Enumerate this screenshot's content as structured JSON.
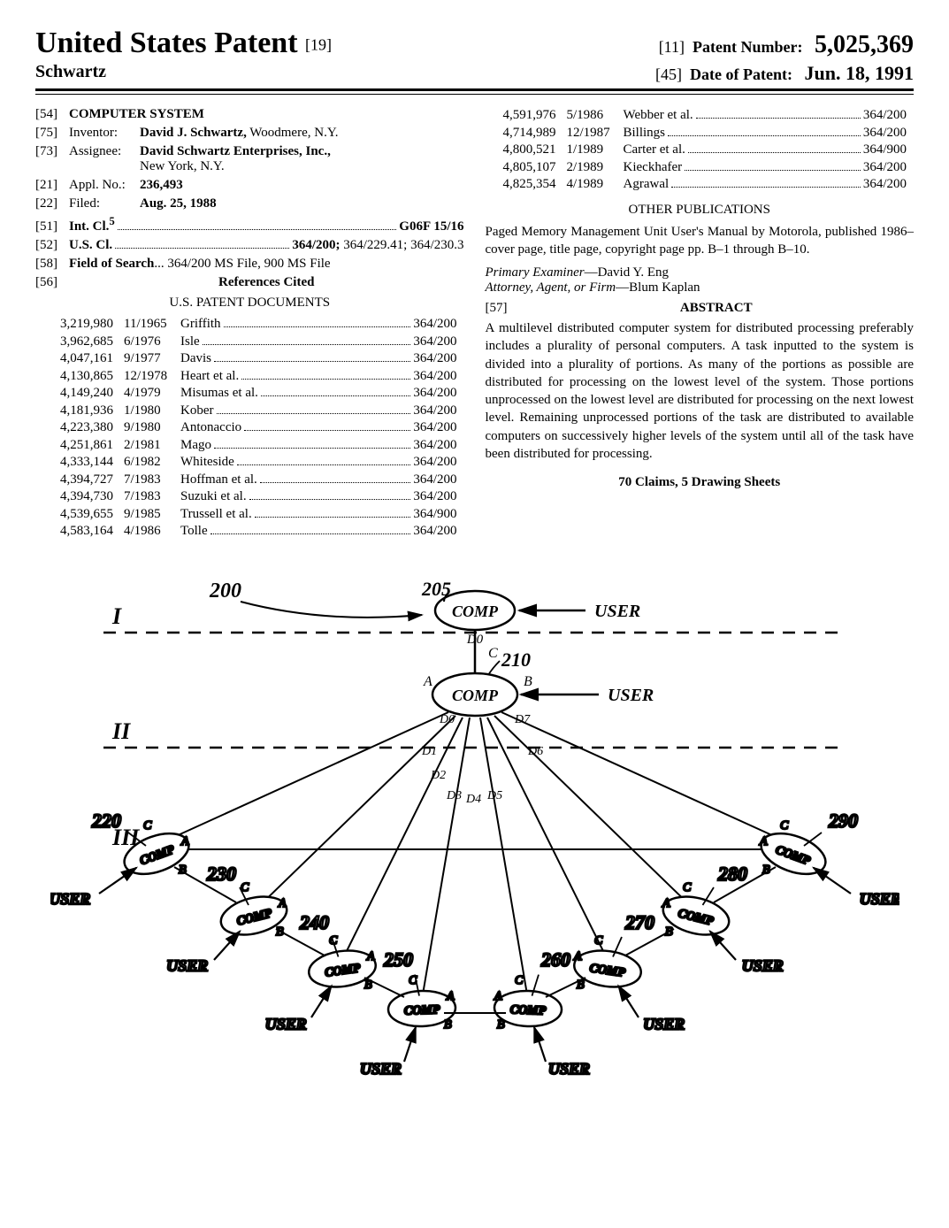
{
  "header": {
    "country_title": "United States Patent",
    "left_code": "[19]",
    "inventor_surname": "Schwartz",
    "patent_number_label": "Patent Number:",
    "patent_number_code": "[11]",
    "patent_number": "5,025,369",
    "date_label": "Date of Patent:",
    "date_code": "[45]",
    "date_of_patent": "Jun. 18, 1991"
  },
  "biblio": {
    "title_code": "[54]",
    "title": "COMPUTER SYSTEM",
    "inventor_code": "[75]",
    "inventor_label": "Inventor:",
    "inventor": "David J. Schwartz,",
    "inventor_loc": " Woodmere, N.Y.",
    "assignee_code": "[73]",
    "assignee_label": "Assignee:",
    "assignee": "David Schwartz Enterprises, Inc.,",
    "assignee_loc": "New York, N.Y.",
    "appl_code": "[21]",
    "appl_label": "Appl. No.:",
    "appl_no": "236,493",
    "filed_code": "[22]",
    "filed_label": "Filed:",
    "filed": "Aug. 25, 1988",
    "intcl_code": "[51]",
    "intcl_label": "Int. Cl.",
    "intcl_sup": "5",
    "intcl_val": "G06F 15/16",
    "uscl_code": "[52]",
    "uscl_label": "U.S. Cl.",
    "uscl_val": "364/200; ",
    "uscl_bold": "364/200;",
    "uscl_rest": " 364/229.41; 364/230.3",
    "fos_code": "[58]",
    "fos_label": "Field of Search",
    "fos_val": "... 364/200 MS File, 900 MS File",
    "refs_code": "[56]",
    "refs_label": "References Cited",
    "us_docs_label": "U.S. PATENT DOCUMENTS"
  },
  "refs_left": [
    {
      "num": "3,219,980",
      "date": "11/1965",
      "name": "Griffith",
      "cls": "364/200"
    },
    {
      "num": "3,962,685",
      "date": "6/1976",
      "name": "Isle",
      "cls": "364/200"
    },
    {
      "num": "4,047,161",
      "date": "9/1977",
      "name": "Davis",
      "cls": "364/200"
    },
    {
      "num": "4,130,865",
      "date": "12/1978",
      "name": "Heart et al.",
      "cls": "364/200"
    },
    {
      "num": "4,149,240",
      "date": "4/1979",
      "name": "Misumas et al.",
      "cls": "364/200"
    },
    {
      "num": "4,181,936",
      "date": "1/1980",
      "name": "Kober",
      "cls": "364/200"
    },
    {
      "num": "4,223,380",
      "date": "9/1980",
      "name": "Antonaccio",
      "cls": "364/200"
    },
    {
      "num": "4,251,861",
      "date": "2/1981",
      "name": "Mago",
      "cls": "364/200"
    },
    {
      "num": "4,333,144",
      "date": "6/1982",
      "name": "Whiteside",
      "cls": "364/200"
    },
    {
      "num": "4,394,727",
      "date": "7/1983",
      "name": "Hoffman et al.",
      "cls": "364/200"
    },
    {
      "num": "4,394,730",
      "date": "7/1983",
      "name": "Suzuki et al.",
      "cls": "364/200"
    },
    {
      "num": "4,539,655",
      "date": "9/1985",
      "name": "Trussell et al.",
      "cls": "364/900"
    },
    {
      "num": "4,583,164",
      "date": "4/1986",
      "name": "Tolle",
      "cls": "364/200"
    }
  ],
  "refs_right": [
    {
      "num": "4,591,976",
      "date": "5/1986",
      "name": "Webber et al.",
      "cls": "364/200"
    },
    {
      "num": "4,714,989",
      "date": "12/1987",
      "name": "Billings",
      "cls": "364/200"
    },
    {
      "num": "4,800,521",
      "date": "1/1989",
      "name": "Carter et al.",
      "cls": "364/900"
    },
    {
      "num": "4,805,107",
      "date": "2/1989",
      "name": "Kieckhafer",
      "cls": "364/200"
    },
    {
      "num": "4,825,354",
      "date": "4/1989",
      "name": "Agrawal",
      "cls": "364/200"
    }
  ],
  "other_pubs_label": "OTHER PUBLICATIONS",
  "other_pubs_text": "Paged Memory Management Unit User's Manual by Motorola, published 1986–cover page, title page, copyright page pp. B–1 through B–10.",
  "examiner_label": "Primary Examiner",
  "examiner": "—David Y. Eng",
  "attorney_label": "Attorney, Agent, or Firm",
  "attorney": "—Blum Kaplan",
  "abstract_code": "[57]",
  "abstract_label": "ABSTRACT",
  "abstract_text": "A multilevel distributed computer system for distributed processing preferably includes a plurality of personal computers. A task inputted to the system is divided into a plurality of portions. As many of the portions as possible are distributed for processing on the lowest level of the system. Those portions unprocessed on the lowest level are distributed for processing on the next lowest level. Remaining unprocessed portions of the task are distributed to available computers on successively higher levels of the system until all of the task have been distributed for processing.",
  "claims_line": "70 Claims, 5 Drawing Sheets",
  "figure": {
    "ref_200": "200",
    "ref_205": "205",
    "ref_210": "210",
    "ref_220": "220",
    "ref_230": "230",
    "ref_240": "240",
    "ref_250": "250",
    "ref_260": "260",
    "ref_270": "270",
    "ref_280": "280",
    "ref_290": "290",
    "comp": "COMP",
    "user": "USER",
    "level1": "I",
    "level2": "II",
    "level3": "III",
    "d0": "D0",
    "d1": "D1",
    "d2": "D2",
    "d3": "D3",
    "d4": "D4",
    "d5": "D5",
    "d6": "D6",
    "d7": "D7",
    "a": "A",
    "b": "B",
    "c": "C"
  }
}
